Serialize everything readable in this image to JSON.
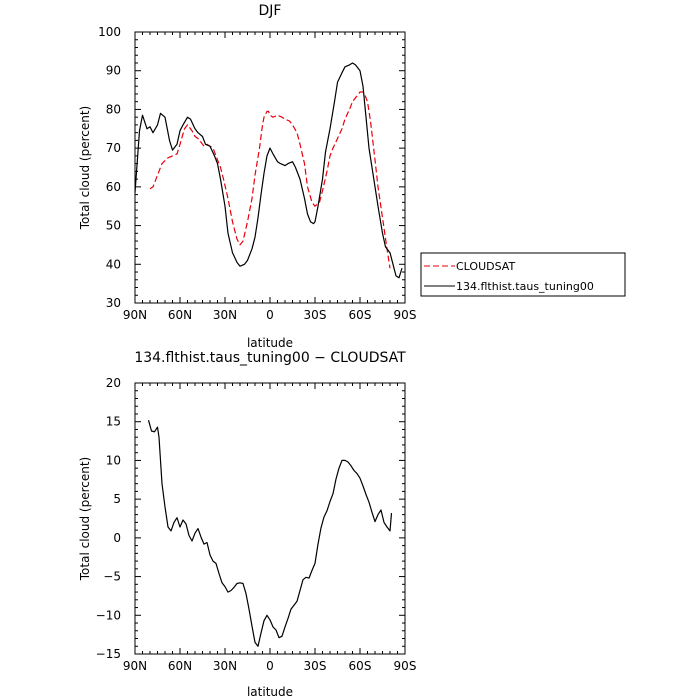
{
  "chart_data": [
    {
      "type": "line",
      "title": "DJF",
      "xlabel": "latitude",
      "ylabel": "Total cloud (percent)",
      "xlim": [
        90,
        -90
      ],
      "ylim": [
        30,
        100
      ],
      "x_ticks": [
        90,
        60,
        30,
        0,
        -30,
        -60,
        -90
      ],
      "x_tick_labels": [
        "90N",
        "60N",
        "30N",
        "0",
        "30S",
        "60S",
        "90S"
      ],
      "y_ticks": [
        30,
        40,
        50,
        60,
        70,
        80,
        90,
        100
      ],
      "y_tick_labels": [
        "30",
        "40",
        "50",
        "60",
        "70",
        "80",
        "90",
        "100"
      ],
      "grid": false,
      "legend_position": "right",
      "series": [
        {
          "name": "CLOUDSAT",
          "color": "#e8000b",
          "dash": "dashed",
          "x": [
            80,
            78,
            75,
            72,
            68,
            65,
            62,
            60,
            57,
            55,
            52,
            50,
            48,
            46,
            44,
            42,
            40,
            38,
            35,
            33,
            31,
            28,
            25,
            22,
            20,
            18,
            15,
            12,
            10,
            7,
            5,
            4,
            2,
            1,
            0,
            -2,
            -5,
            -8,
            -10,
            -13,
            -15,
            -18,
            -20,
            -23,
            -25,
            -28,
            -30,
            -33,
            -35,
            -38,
            -40,
            -42,
            -45,
            -48,
            -50,
            -53,
            -55,
            -57,
            -60,
            -62,
            -63,
            -65,
            -67,
            -70,
            -72,
            -75,
            -78,
            -80
          ],
          "y": [
            59.5,
            60,
            63,
            66,
            67.5,
            68,
            68.5,
            71,
            75,
            76,
            74.5,
            73,
            72.5,
            71.5,
            70.5,
            71,
            70.5,
            70,
            67,
            65,
            62,
            57,
            51,
            46.5,
            45,
            46,
            51,
            57,
            63,
            70,
            76,
            78,
            79.5,
            79.5,
            78.5,
            78,
            78.5,
            78,
            77.5,
            77,
            76,
            74,
            71,
            66,
            60,
            56,
            55,
            56,
            59,
            64,
            68,
            70,
            72.5,
            75,
            77.5,
            80,
            82,
            83,
            84.5,
            84.5,
            84,
            82,
            77,
            67,
            60,
            52,
            44,
            39
          ]
        },
        {
          "name": "134.flthist.taus_tuning00",
          "color": "#000000",
          "dash": "solid",
          "x": [
            90,
            87,
            85,
            82,
            80,
            78,
            75,
            73,
            70,
            67,
            65,
            62,
            60,
            58,
            55,
            53,
            50,
            48,
            45,
            43,
            40,
            37,
            35,
            33,
            30,
            28,
            25,
            22,
            20,
            17,
            15,
            12,
            10,
            8,
            6,
            4,
            2,
            0,
            -2,
            -5,
            -7,
            -10,
            -12,
            -15,
            -17,
            -20,
            -23,
            -25,
            -27,
            -29,
            -30,
            -32,
            -35,
            -37,
            -40,
            -43,
            -45,
            -48,
            -50,
            -53,
            -55,
            -57,
            -60,
            -62,
            -64,
            -66,
            -68,
            -70,
            -72,
            -75,
            -77,
            -80,
            -82,
            -84,
            -86,
            -88
          ],
          "y": [
            58.5,
            74.5,
            78.5,
            75,
            75.5,
            74,
            76,
            79,
            78,
            72,
            69.5,
            71,
            74.5,
            76,
            78,
            77.5,
            75,
            74,
            73,
            71,
            70.5,
            68,
            66,
            62,
            55,
            48,
            43,
            40.5,
            39.5,
            40,
            41,
            44,
            47,
            52,
            58,
            63.5,
            68,
            70,
            68.5,
            66.5,
            66,
            65.5,
            66,
            66.5,
            65,
            62,
            57,
            53,
            51,
            50.5,
            51,
            55,
            62,
            69,
            75,
            82,
            87,
            89.5,
            91,
            91.5,
            92,
            91.5,
            90,
            86,
            78,
            70,
            65,
            60,
            55,
            48,
            44.5,
            43,
            40,
            37,
            36.5,
            39
          ]
        }
      ]
    },
    {
      "type": "line",
      "title": "134.flthist.taus_tuning00 − CLOUDSAT",
      "xlabel": "latitude",
      "ylabel": "Total cloud (percent)",
      "xlim": [
        90,
        -90
      ],
      "ylim": [
        -15,
        20
      ],
      "x_ticks": [
        90,
        60,
        30,
        0,
        -30,
        -60,
        -90
      ],
      "x_tick_labels": [
        "90N",
        "60N",
        "30N",
        "0",
        "30S",
        "60S",
        "90S"
      ],
      "y_ticks": [
        -15,
        -10,
        -5,
        0,
        5,
        10,
        15,
        20
      ],
      "y_tick_labels": [
        "−15",
        "−10",
        "−5",
        "0",
        "5",
        "10",
        "15",
        "20"
      ],
      "grid": false,
      "series": [
        {
          "color": "#000000",
          "dash": "solid",
          "x": [
            81,
            79,
            77,
            75,
            74,
            72,
            70,
            68,
            66,
            64,
            62,
            60,
            58,
            56,
            54,
            52,
            50,
            48,
            46,
            44,
            42,
            40,
            38,
            36,
            34,
            32,
            30,
            28,
            26,
            24,
            22,
            20,
            18,
            16,
            14,
            12,
            10,
            8,
            6,
            4,
            2,
            0,
            -2,
            -4,
            -6,
            -8,
            -10,
            -12,
            -14,
            -16,
            -18,
            -20,
            -22,
            -24,
            -26,
            -28,
            -30,
            -32,
            -34,
            -36,
            -38,
            -40,
            -42,
            -44,
            -46,
            -48,
            -50,
            -52,
            -54,
            -56,
            -58,
            -60,
            -62,
            -64,
            -66,
            -68,
            -70,
            -72,
            -74,
            -76,
            -78,
            -80,
            -81
          ],
          "y": [
            15.2,
            13.8,
            13.7,
            14.3,
            13,
            7,
            4,
            1.4,
            0.9,
            2,
            2.6,
            1.4,
            2.3,
            1.8,
            0.3,
            -0.4,
            0.6,
            1.2,
            0.1,
            -0.8,
            -0.6,
            -2.2,
            -3,
            -3.3,
            -4.6,
            -5.8,
            -6.3,
            -7,
            -6.8,
            -6.4,
            -5.9,
            -5.8,
            -5.9,
            -7.2,
            -9.2,
            -11.4,
            -13.5,
            -14,
            -12.3,
            -10.7,
            -10,
            -10.6,
            -11.5,
            -11.9,
            -12.9,
            -12.7,
            -11.5,
            -10.4,
            -9.2,
            -8.7,
            -8.2,
            -6.8,
            -5.4,
            -5.1,
            -5.2,
            -4.2,
            -3.3,
            -0.8,
            1.3,
            2.7,
            3.5,
            4.7,
            5.7,
            7.6,
            9,
            10,
            10,
            9.8,
            9.3,
            8.7,
            8.3,
            7.7,
            6.7,
            5.6,
            4.6,
            3.3,
            2.1,
            3,
            3.6,
            2,
            1.4,
            0.9,
            3.2
          ]
        }
      ]
    }
  ]
}
